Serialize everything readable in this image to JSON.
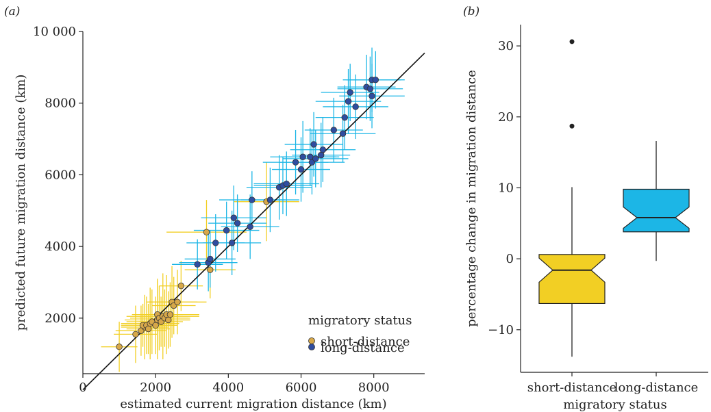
{
  "colors": {
    "short": "#f2cf24",
    "short_point": "#d7a84a",
    "long": "#1cb6e6",
    "long_point": "#2f4da0",
    "axis": "#222222",
    "diagonal": "#111111"
  },
  "chart_data": [
    {
      "type": "scatter",
      "panel_label": "(a)",
      "xlabel": "estimated current migration distance (km)",
      "ylabel": "predicted future migration distance (km)",
      "xlim": [
        0,
        9400
      ],
      "ylim": [
        450,
        10000
      ],
      "xticks": [
        0,
        2000,
        4000,
        6000,
        8000
      ],
      "xtick_labels": [
        "0",
        "2000",
        "4000",
        "6000",
        "8000"
      ],
      "yticks": [
        2000,
        4000,
        6000,
        8000,
        10000
      ],
      "ytick_labels": [
        "2000",
        "4000",
        "6000",
        "8000",
        "10 000"
      ],
      "reference_line": "y = x",
      "grid": false,
      "legend": {
        "title": "migratory status",
        "position": "bottom-right",
        "entries": [
          "short-distance",
          "long-distance"
        ]
      },
      "series": [
        {
          "name": "short-distance",
          "color_key": "short",
          "points": [
            {
              "x": 1000,
              "y": 1200,
              "ex": 500,
              "ey": 700
            },
            {
              "x": 1450,
              "y": 1550,
              "ex": 600,
              "ey": 800
            },
            {
              "x": 1600,
              "y": 1650,
              "ex": 700,
              "ey": 700
            },
            {
              "x": 1700,
              "y": 1750,
              "ex": 650,
              "ey": 900
            },
            {
              "x": 1650,
              "y": 1800,
              "ex": 500,
              "ey": 600
            },
            {
              "x": 1750,
              "y": 1800,
              "ex": 700,
              "ey": 800
            },
            {
              "x": 1800,
              "y": 1700,
              "ex": 600,
              "ey": 700
            },
            {
              "x": 1850,
              "y": 1850,
              "ex": 800,
              "ey": 1000
            },
            {
              "x": 1900,
              "y": 1900,
              "ex": 700,
              "ey": 900
            },
            {
              "x": 2000,
              "y": 1800,
              "ex": 600,
              "ey": 800
            },
            {
              "x": 2050,
              "y": 1950,
              "ex": 900,
              "ey": 1100
            },
            {
              "x": 2050,
              "y": 2100,
              "ex": 700,
              "ey": 1000
            },
            {
              "x": 2100,
              "y": 2000,
              "ex": 800,
              "ey": 900
            },
            {
              "x": 2150,
              "y": 1900,
              "ex": 600,
              "ey": 700
            },
            {
              "x": 2200,
              "y": 2050,
              "ex": 1000,
              "ey": 1200
            },
            {
              "x": 2250,
              "y": 2000,
              "ex": 700,
              "ey": 800
            },
            {
              "x": 2300,
              "y": 2100,
              "ex": 900,
              "ey": 1100
            },
            {
              "x": 2350,
              "y": 1950,
              "ex": 600,
              "ey": 800
            },
            {
              "x": 2400,
              "y": 2100,
              "ex": 800,
              "ey": 900
            },
            {
              "x": 2450,
              "y": 2450,
              "ex": 700,
              "ey": 1000
            },
            {
              "x": 2500,
              "y": 2350,
              "ex": 600,
              "ey": 800
            },
            {
              "x": 2600,
              "y": 2450,
              "ex": 800,
              "ey": 900
            },
            {
              "x": 2700,
              "y": 2900,
              "ex": 600,
              "ey": 700
            },
            {
              "x": 3400,
              "y": 4400,
              "ex": 1100,
              "ey": 900
            },
            {
              "x": 3500,
              "y": 3350,
              "ex": 700,
              "ey": 800
            },
            {
              "x": 5050,
              "y": 5250,
              "ex": 900,
              "ey": 1100
            }
          ]
        },
        {
          "name": "long-distance",
          "color_key": "long",
          "points": [
            {
              "x": 3150,
              "y": 3500,
              "ex": 700,
              "ey": 700
            },
            {
              "x": 3450,
              "y": 3550,
              "ex": 800,
              "ey": 800
            },
            {
              "x": 3500,
              "y": 3650,
              "ex": 700,
              "ey": 800
            },
            {
              "x": 3650,
              "y": 4100,
              "ex": 800,
              "ey": 800
            },
            {
              "x": 3950,
              "y": 4450,
              "ex": 900,
              "ey": 800
            },
            {
              "x": 4100,
              "y": 4100,
              "ex": 800,
              "ey": 900
            },
            {
              "x": 4150,
              "y": 4800,
              "ex": 900,
              "ey": 900
            },
            {
              "x": 4250,
              "y": 4650,
              "ex": 800,
              "ey": 800
            },
            {
              "x": 4600,
              "y": 4550,
              "ex": 800,
              "ey": 900
            },
            {
              "x": 4650,
              "y": 5300,
              "ex": 900,
              "ey": 800
            },
            {
              "x": 5150,
              "y": 5300,
              "ex": 800,
              "ey": 900
            },
            {
              "x": 5400,
              "y": 5650,
              "ex": 900,
              "ey": 900
            },
            {
              "x": 5500,
              "y": 5700,
              "ex": 800,
              "ey": 800
            },
            {
              "x": 5600,
              "y": 5750,
              "ex": 900,
              "ey": 900
            },
            {
              "x": 5850,
              "y": 6350,
              "ex": 900,
              "ey": 900
            },
            {
              "x": 6000,
              "y": 6150,
              "ex": 800,
              "ey": 900
            },
            {
              "x": 6050,
              "y": 6500,
              "ex": 900,
              "ey": 1000
            },
            {
              "x": 6250,
              "y": 6500,
              "ex": 800,
              "ey": 800
            },
            {
              "x": 6300,
              "y": 6350,
              "ex": 900,
              "ey": 900
            },
            {
              "x": 6350,
              "y": 6850,
              "ex": 800,
              "ey": 900
            },
            {
              "x": 6400,
              "y": 6450,
              "ex": 900,
              "ey": 800
            },
            {
              "x": 6550,
              "y": 6550,
              "ex": 800,
              "ey": 900
            },
            {
              "x": 6600,
              "y": 6700,
              "ex": 900,
              "ey": 900
            },
            {
              "x": 6900,
              "y": 7250,
              "ex": 800,
              "ey": 900
            },
            {
              "x": 7150,
              "y": 7150,
              "ex": 900,
              "ey": 800
            },
            {
              "x": 7200,
              "y": 7600,
              "ex": 800,
              "ey": 900
            },
            {
              "x": 7300,
              "y": 8050,
              "ex": 900,
              "ey": 900
            },
            {
              "x": 7350,
              "y": 8300,
              "ex": 800,
              "ey": 800
            },
            {
              "x": 7500,
              "y": 7900,
              "ex": 900,
              "ey": 900
            },
            {
              "x": 7800,
              "y": 8450,
              "ex": 800,
              "ey": 900
            },
            {
              "x": 7900,
              "y": 8400,
              "ex": 900,
              "ey": 900
            },
            {
              "x": 7950,
              "y": 8650,
              "ex": 800,
              "ey": 900
            },
            {
              "x": 7950,
              "y": 8200,
              "ex": 900,
              "ey": 900
            },
            {
              "x": 8050,
              "y": 8650,
              "ex": 800,
              "ey": 800
            }
          ]
        }
      ]
    },
    {
      "type": "box",
      "panel_label": "(b)",
      "xlabel": "migratory status",
      "ylabel": "percentage change in migration distance",
      "categories": [
        "short-distance",
        "long-distance"
      ],
      "ylim": [
        -16,
        33
      ],
      "yticks": [
        -10,
        0,
        10,
        20,
        30
      ],
      "ytick_labels": [
        "−10",
        "0",
        "10",
        "20",
        "30"
      ],
      "notched": true,
      "boxes": [
        {
          "category": "short-distance",
          "color_key": "short",
          "whisker_low": -13.8,
          "q1": -6.3,
          "median": -1.6,
          "q3": 0.6,
          "whisker_high": 10.1,
          "notch_low": -3.3,
          "notch_high": 0.1,
          "outliers": [
            30.6,
            18.7
          ]
        },
        {
          "category": "long-distance",
          "color_key": "long",
          "whisker_low": -0.3,
          "q1": 3.8,
          "median": 5.8,
          "q3": 9.8,
          "whisker_high": 16.6,
          "notch_low": 4.3,
          "notch_high": 7.3,
          "outliers": []
        }
      ]
    }
  ]
}
